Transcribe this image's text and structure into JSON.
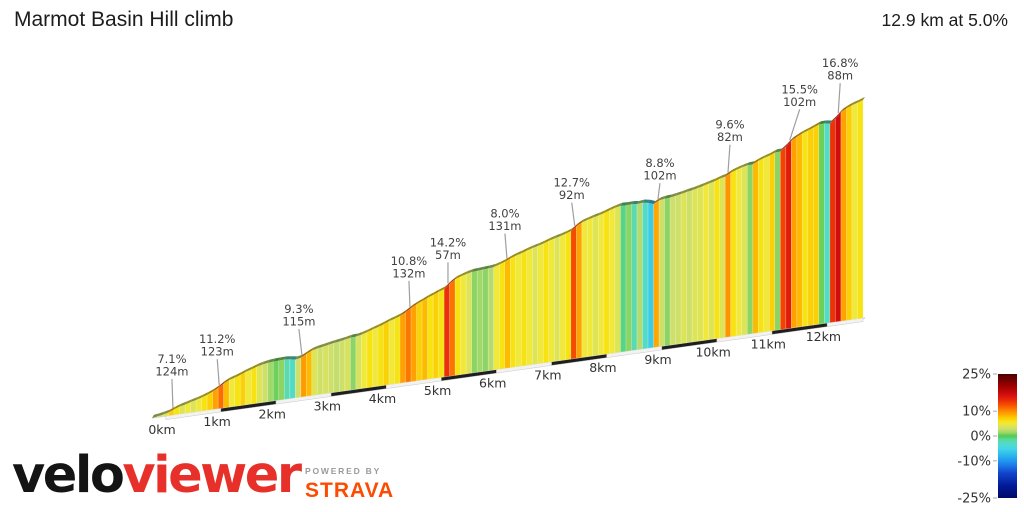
{
  "header": {
    "title": "Marmot Basin Hill climb",
    "summary": "12.9 km at 5.0%"
  },
  "chart_data": {
    "type": "area",
    "title": "Marmot Basin Hill climb",
    "subtitle": "12.9 km at 5.0%",
    "total_km": 12.9,
    "avg_gradient_pct": 5.0,
    "bin_km": 0.1,
    "gradient_pct_per_100m": [
      2.5,
      3,
      4,
      7.1,
      6,
      4,
      5,
      4,
      5,
      6,
      7,
      9,
      11.2,
      8,
      5,
      6,
      7,
      5,
      6,
      4,
      3,
      1.5,
      0.5,
      1,
      -2,
      -3,
      3,
      9.3,
      8,
      4,
      3,
      3.5,
      3,
      2.5,
      3,
      3.5,
      1,
      3.5,
      5,
      6,
      5,
      6,
      7,
      5,
      6,
      9,
      10.8,
      9,
      7,
      8,
      6,
      7,
      6,
      14.2,
      11,
      6,
      5,
      4,
      1,
      1.5,
      1,
      2,
      5,
      6,
      8,
      6,
      5,
      6,
      5,
      4,
      5,
      6,
      5,
      4,
      5,
      6,
      12.7,
      9,
      5,
      5,
      4,
      5,
      6,
      5,
      4,
      -1,
      1,
      -2,
      2,
      -3,
      -6,
      8.8,
      3,
      1,
      3,
      3,
      4,
      3,
      4,
      4,
      5,
      4,
      6,
      4,
      9.6,
      6,
      5,
      4,
      1,
      8,
      6,
      5,
      7,
      1,
      13,
      15.5,
      9,
      8,
      6,
      7,
      7,
      0.5,
      -3,
      14,
      16.8,
      9,
      7,
      5,
      6
    ],
    "x_ticks": [
      "0km",
      "1km",
      "2km",
      "3km",
      "4km",
      "5km",
      "6km",
      "7km",
      "8km",
      "9km",
      "10km",
      "11km",
      "12km"
    ],
    "annotations": [
      {
        "km": 0.38,
        "gradient": "7.1%",
        "length": "124m",
        "dx": -1,
        "gap": 34
      },
      {
        "km": 1.22,
        "gradient": "11.2%",
        "length": "123m",
        "dx": -2,
        "gap": 31
      },
      {
        "km": 2.72,
        "gradient": "9.3%",
        "length": "115m",
        "dx": -3,
        "gap": 31
      },
      {
        "km": 4.68,
        "gradient": "10.8%",
        "length": "132m",
        "dx": -1,
        "gap": 31
      },
      {
        "km": 5.37,
        "gradient": "14.2%",
        "length": "57m",
        "dx": 0,
        "gap": 26
      },
      {
        "km": 6.44,
        "gradient": "8.0%",
        "length": "131m",
        "dx": -2,
        "gap": 30
      },
      {
        "km": 7.67,
        "gradient": "12.7%",
        "length": "92m",
        "dx": -3,
        "gap": 28
      },
      {
        "km": 9.18,
        "gradient": "8.8%",
        "length": "102m",
        "dx": 2,
        "gap": 21
      },
      {
        "km": 10.45,
        "gradient": "9.6%",
        "length": "82m",
        "dx": 2,
        "gap": 33
      },
      {
        "km": 11.57,
        "gradient": "15.5%",
        "length": "102m",
        "dx": 10,
        "gap": 36
      },
      {
        "km": 12.45,
        "gradient": "16.8%",
        "length": "88m",
        "dx": 2,
        "gap": 35
      }
    ],
    "legend": {
      "position": "right",
      "ticks": [
        "25%",
        "10%",
        "0%",
        "-10%",
        "-25%"
      ],
      "tick_values": [
        25,
        10,
        0,
        -10,
        -25
      ],
      "max": 25,
      "min": -25
    },
    "color_scale_stops": [
      [
        25,
        "#4a0000"
      ],
      [
        20,
        "#a00000"
      ],
      [
        16,
        "#dd1111"
      ],
      [
        13,
        "#f24400"
      ],
      [
        11,
        "#fb7300"
      ],
      [
        9,
        "#ffa200"
      ],
      [
        7.5,
        "#fbc800"
      ],
      [
        6,
        "#f7e312"
      ],
      [
        5,
        "#f0e83a"
      ],
      [
        4,
        "#dde455"
      ],
      [
        3,
        "#cfe06a"
      ],
      [
        2,
        "#b5db70"
      ],
      [
        1,
        "#8cd464"
      ],
      [
        0,
        "#4ecb4e"
      ],
      [
        -1.5,
        "#5fd9a4"
      ],
      [
        -3,
        "#52dcc8"
      ],
      [
        -5,
        "#45d6e6"
      ],
      [
        -8,
        "#28b4ee"
      ],
      [
        -11,
        "#1e88ee"
      ],
      [
        -15,
        "#1244cc"
      ],
      [
        -20,
        "#001a99"
      ],
      [
        -25,
        "#000a66"
      ]
    ]
  },
  "footer": {
    "velo": "velo",
    "viewer": "viewer",
    "powered_by": "POWERED BY",
    "strava": "STRAVA",
    "viewer_color": "#e8302a",
    "strava_color": "#fc4c02"
  }
}
